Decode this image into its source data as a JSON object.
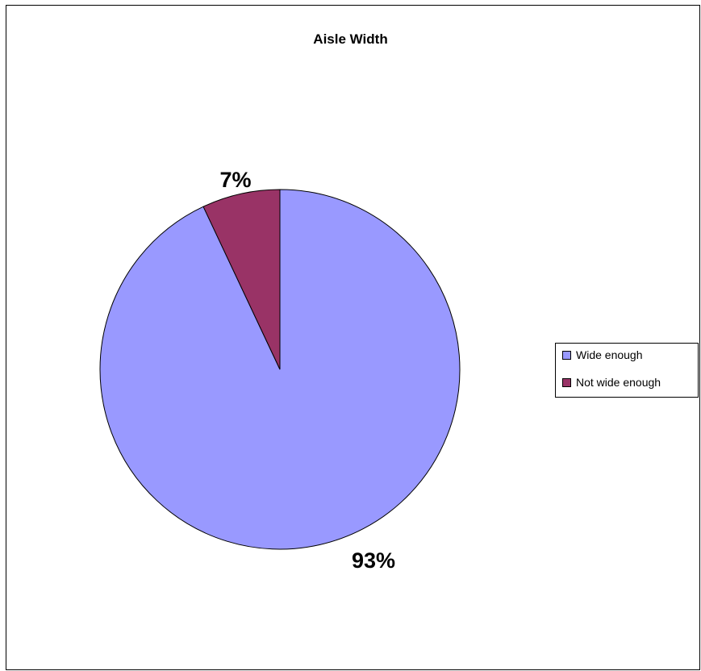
{
  "chart_data": {
    "type": "pie",
    "title": "Aisle Width",
    "slices": [
      {
        "label": "Wide enough",
        "value": 93,
        "display": "93%",
        "color": "#9999ff"
      },
      {
        "label": "Not wide enough",
        "value": 7,
        "display": "7%",
        "color": "#993366"
      }
    ],
    "legend_position": "right",
    "start_angle_deg": 0,
    "direction": "clockwise"
  }
}
